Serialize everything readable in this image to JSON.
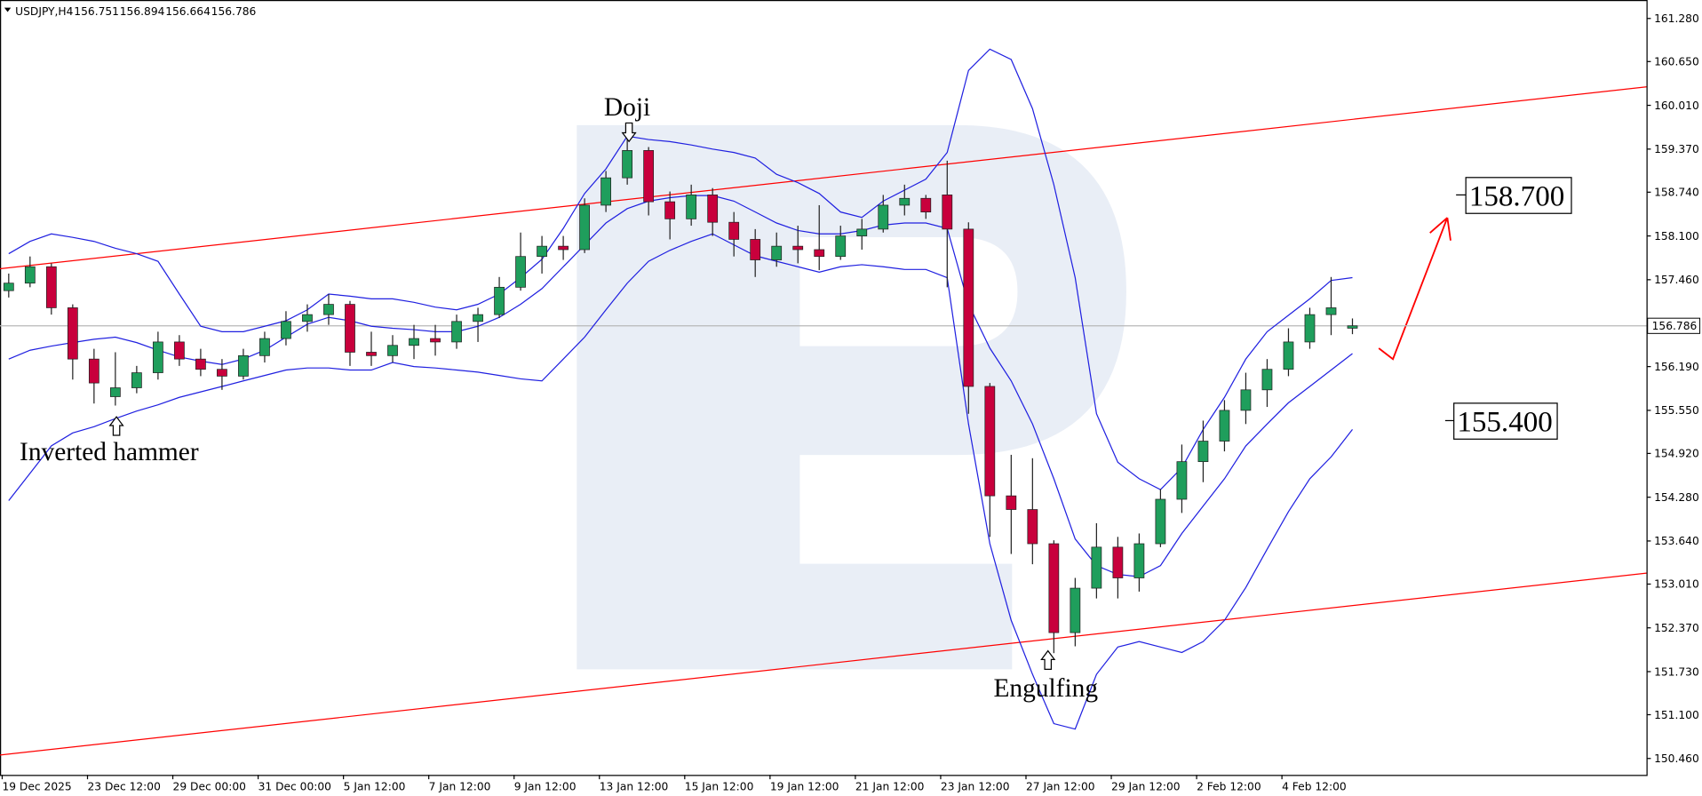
{
  "chart_data": {
    "type": "candlestick",
    "title": "USDJPY,H4",
    "x": [
      "19 Dec 2025",
      null,
      null,
      null,
      "23 Dec 12:00",
      null,
      null,
      null,
      "29 Dec 00:00",
      null,
      null,
      null,
      "31 Dec 00:00",
      null,
      null,
      null,
      "5 Jan 12:00",
      null,
      null,
      null,
      "7 Jan 12:00",
      null,
      null,
      null,
      "9 Jan 12:00",
      null,
      null,
      null,
      "13 Jan 12:00",
      null,
      null,
      null,
      "15 Jan 12:00",
      null,
      null,
      null,
      "19 Jan 12:00",
      null,
      null,
      null,
      "21 Jan 12:00",
      null,
      null,
      null,
      "23 Jan 12:00",
      null,
      null,
      null,
      "27 Jan 12:00",
      null,
      null,
      null,
      "29 Jan 12:00",
      null,
      null,
      null,
      "2 Feb 12:00",
      null,
      null,
      null,
      "4 Feb 12:00",
      null,
      null,
      null
    ],
    "open": [
      157.3,
      157.41,
      157.65,
      157.05,
      156.3,
      155.75,
      155.88,
      156.1,
      156.55,
      156.3,
      156.15,
      156.05,
      156.35,
      156.6,
      156.85,
      156.95,
      157.1,
      156.4,
      156.35,
      156.5,
      156.6,
      156.55,
      156.85,
      156.95,
      157.35,
      157.8,
      157.95,
      157.9,
      158.55,
      158.95,
      159.35,
      158.6,
      158.35,
      158.7,
      158.3,
      158.05,
      157.75,
      157.95,
      157.9,
      157.8,
      158.1,
      158.2,
      158.55,
      158.65,
      158.7,
      158.2,
      155.9,
      154.3,
      154.1,
      153.6,
      152.3,
      152.95,
      153.55,
      153.1,
      153.6,
      154.25,
      154.8,
      155.1,
      155.55,
      155.85,
      156.15,
      156.55,
      156.95,
      156.751
    ],
    "high": [
      157.55,
      157.8,
      157.7,
      157.1,
      156.45,
      156.4,
      156.2,
      156.7,
      156.65,
      156.45,
      156.3,
      156.45,
      156.7,
      157.0,
      157.1,
      157.25,
      157.15,
      156.7,
      156.65,
      156.8,
      156.8,
      156.95,
      157.05,
      157.5,
      158.15,
      158.1,
      158.1,
      158.65,
      159.05,
      159.55,
      159.4,
      158.75,
      158.85,
      158.8,
      158.45,
      158.2,
      158.15,
      158.25,
      158.55,
      158.25,
      158.35,
      158.7,
      158.85,
      158.7,
      159.2,
      158.3,
      155.95,
      154.9,
      154.85,
      153.65,
      153.1,
      153.9,
      153.7,
      153.75,
      154.4,
      155.05,
      155.4,
      155.7,
      156.1,
      156.3,
      156.75,
      157.05,
      157.5,
      156.894
    ],
    "low": [
      157.2,
      157.35,
      156.95,
      156.0,
      155.65,
      155.62,
      155.8,
      156.0,
      156.2,
      156.05,
      155.85,
      156.0,
      156.25,
      156.5,
      156.7,
      156.8,
      156.2,
      156.2,
      156.25,
      156.3,
      156.35,
      156.45,
      156.55,
      156.9,
      157.3,
      157.55,
      157.75,
      157.85,
      158.45,
      158.85,
      158.4,
      158.05,
      158.25,
      158.1,
      157.8,
      157.5,
      157.65,
      157.7,
      157.6,
      157.75,
      157.9,
      158.15,
      158.4,
      158.35,
      157.35,
      155.5,
      153.7,
      153.45,
      153.3,
      152.0,
      152.1,
      152.8,
      152.8,
      152.9,
      153.55,
      154.05,
      154.5,
      154.95,
      155.35,
      155.6,
      156.05,
      156.45,
      156.65,
      156.664
    ],
    "close": [
      157.41,
      157.65,
      157.05,
      156.3,
      155.95,
      155.88,
      156.1,
      156.55,
      156.3,
      156.15,
      156.05,
      156.35,
      156.6,
      156.85,
      156.95,
      157.1,
      156.4,
      156.35,
      156.5,
      156.6,
      156.55,
      156.85,
      156.95,
      157.35,
      157.8,
      157.95,
      157.9,
      158.55,
      158.95,
      159.35,
      158.6,
      158.35,
      158.7,
      158.3,
      158.05,
      157.75,
      157.95,
      157.9,
      157.8,
      158.1,
      158.2,
      158.55,
      158.65,
      158.45,
      158.2,
      155.9,
      154.3,
      154.1,
      153.6,
      152.3,
      152.95,
      153.55,
      153.1,
      153.6,
      154.25,
      154.8,
      155.1,
      155.55,
      155.85,
      156.15,
      156.55,
      156.95,
      157.05,
      156.786
    ],
    "up_color": "#1f9e5c",
    "down_color": "#c8003c",
    "bands": [
      {
        "color": "#2020e0",
        "values": [
          157.84,
          158.02,
          158.13,
          158.08,
          158.02,
          157.92,
          157.84,
          157.73,
          157.25,
          156.78,
          156.7,
          156.7,
          156.78,
          156.86,
          157.02,
          157.25,
          157.22,
          157.18,
          157.18,
          157.13,
          157.06,
          157.02,
          157.1,
          157.25,
          157.49,
          157.76,
          158.21,
          158.72,
          159.08,
          159.56,
          159.51,
          159.48,
          159.43,
          159.37,
          159.32,
          159.24,
          159.0,
          158.88,
          158.72,
          158.45,
          158.37,
          158.61,
          158.77,
          158.93,
          159.32,
          160.52,
          160.83,
          160.68,
          159.96,
          158.85,
          157.49,
          155.5,
          154.79,
          154.55,
          154.39,
          154.71,
          155.27,
          155.74,
          156.3,
          156.7,
          156.94,
          157.18,
          157.45,
          157.49
        ]
      },
      {
        "color": "#2020e0",
        "values": [
          156.3,
          156.43,
          156.49,
          156.54,
          156.59,
          156.62,
          156.54,
          156.43,
          156.33,
          156.27,
          156.22,
          156.3,
          156.43,
          156.62,
          156.81,
          156.91,
          156.86,
          156.78,
          156.75,
          156.73,
          156.7,
          156.7,
          156.78,
          156.91,
          157.1,
          157.33,
          157.65,
          157.97,
          158.29,
          158.5,
          158.61,
          158.66,
          158.69,
          158.69,
          158.61,
          158.45,
          158.29,
          158.18,
          158.13,
          158.13,
          158.18,
          158.26,
          158.29,
          158.29,
          158.21,
          157.1,
          156.46,
          155.98,
          155.35,
          154.55,
          153.67,
          153.28,
          153.15,
          153.12,
          153.28,
          153.75,
          154.15,
          154.55,
          155.03,
          155.35,
          155.66,
          155.9,
          156.14,
          156.38
        ]
      },
      {
        "color": "#2020e0",
        "values": [
          154.23,
          154.63,
          155.03,
          155.22,
          155.31,
          155.43,
          155.54,
          155.63,
          155.74,
          155.82,
          155.9,
          155.98,
          156.06,
          156.14,
          156.17,
          156.17,
          156.14,
          156.14,
          156.25,
          156.19,
          156.17,
          156.14,
          156.11,
          156.06,
          156.01,
          155.98,
          156.3,
          156.62,
          157.02,
          157.41,
          157.73,
          157.89,
          158.02,
          158.13,
          157.97,
          157.81,
          157.73,
          157.65,
          157.57,
          157.65,
          157.68,
          157.65,
          157.61,
          157.61,
          157.49,
          155.35,
          153.6,
          152.48,
          151.69,
          150.97,
          150.89,
          151.69,
          152.09,
          152.17,
          152.09,
          152.01,
          152.17,
          152.48,
          152.96,
          153.52,
          154.07,
          154.55,
          154.87,
          155.27
        ]
      }
    ],
    "channels": [
      {
        "color": "#ff0000",
        "values": [
          157.62,
          160.28
        ]
      },
      {
        "color": "#ff0000",
        "values": [
          150.51,
          153.17
        ]
      }
    ],
    "levels": [
      {
        "value": 158.7,
        "label": "158.700"
      },
      {
        "value": 155.4,
        "label": "155.400"
      }
    ],
    "annotations": [
      {
        "text": "Inverted hammer"
      },
      {
        "text": "Doji"
      },
      {
        "text": "Engulfing"
      }
    ],
    "ylim": [
      150.22,
      161.55
    ],
    "yticks": [
      {
        "value": 161.28,
        "label": "161.280"
      },
      {
        "value": 160.65,
        "label": "160.650"
      },
      {
        "value": 160.01,
        "label": "160.010"
      },
      {
        "value": 159.37,
        "label": "159.370"
      },
      {
        "value": 158.74,
        "label": "158.740"
      },
      {
        "value": 158.1,
        "label": "158.100"
      },
      {
        "value": 157.46,
        "label": "157.460"
      },
      {
        "value": 156.19,
        "label": "156.190"
      },
      {
        "value": 155.55,
        "label": "155.550"
      },
      {
        "value": 154.92,
        "label": "154.920"
      },
      {
        "value": 154.28,
        "label": "154.280"
      },
      {
        "value": 153.64,
        "label": "153.640"
      },
      {
        "value": 153.01,
        "label": "153.010"
      },
      {
        "value": 152.37,
        "label": "152.370"
      },
      {
        "value": 151.73,
        "label": "151.730"
      },
      {
        "value": 151.1,
        "label": "151.100"
      },
      {
        "value": 150.46,
        "label": "150.460"
      }
    ],
    "grid": false
  }
}
